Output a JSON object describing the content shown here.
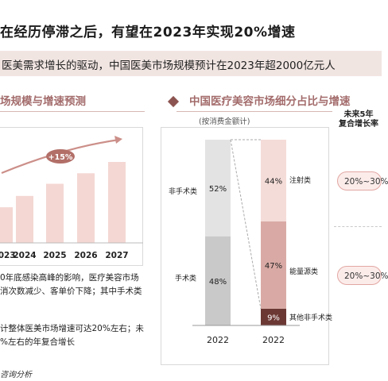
{
  "header": {
    "title": "在经历停滞之后，有望在2023年实现20%增速",
    "subtitle": "医美需求增长的驱动，中国医美市场规模预计在2023年超2000亿元人"
  },
  "left_section": {
    "title": "场规模与增速预测",
    "growth_badge": "+15%",
    "notes": [
      "0年底感染高峰的影响，医疗美容市场",
      "消次数减少、客单价下降；其中手术类",
      "计整体医美市场增速可达20%左右；未",
      "%左右的年复合增长"
    ],
    "source": "咨询分析"
  },
  "right_section": {
    "title": "中国医疗美容市场细分占比与增速",
    "note": "(按消费金额计)",
    "cagr_header": [
      "未来5年",
      "复合增长率"
    ],
    "cagr_pills": [
      "20%~30%",
      "20%~30%"
    ]
  },
  "chart_data": [
    {
      "type": "bar",
      "title": "",
      "categories": [
        "2023",
        "2024",
        "2025",
        "2026",
        "2027"
      ],
      "values": [
        44,
        58,
        73,
        86,
        100
      ],
      "annotations": [
        "+15%"
      ],
      "xlabel": "",
      "ylabel": "",
      "grid": false,
      "color": "#f4d7d3"
    },
    {
      "type": "bar",
      "stacked": true,
      "title": "",
      "categories": [
        "2022",
        "2022"
      ],
      "series": [
        {
          "name": "手术类",
          "values": [
            48,
            null
          ],
          "color": "#c9c9c9"
        },
        {
          "name": "非手术类",
          "values": [
            52,
            null
          ],
          "color": "#e3e3e3"
        },
        {
          "name": "其他非手术类",
          "values": [
            null,
            9
          ],
          "color": "#6b3834"
        },
        {
          "name": "能量源类",
          "values": [
            null,
            47
          ],
          "color": "#d9aaa5"
        },
        {
          "name": "注射类",
          "values": [
            null,
            44
          ],
          "color": "#f4dcd8"
        }
      ],
      "segment_labels": [
        "48%",
        "52%",
        "9%",
        "47%",
        "44%"
      ],
      "side_labels_left": [
        "非手术类",
        "手术类"
      ],
      "side_labels_right": [
        "注射类",
        "能量源类",
        "其他非手术类"
      ],
      "ylim": [
        0,
        100
      ],
      "grid": false
    }
  ]
}
